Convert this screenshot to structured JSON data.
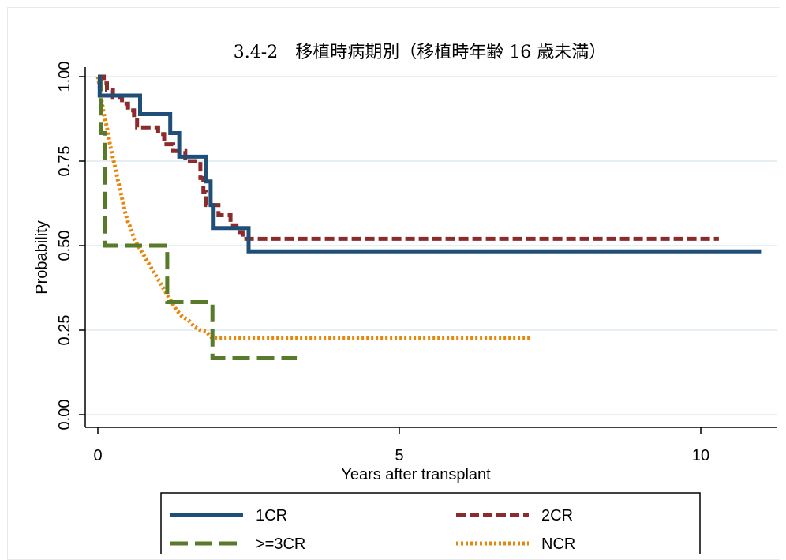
{
  "chart_data": {
    "type": "line",
    "title": "3.4-2　移植時病期別（移植時年齢 16 歳未満）",
    "xlabel": "Years after transplant",
    "ylabel": "Probability",
    "xlim": [
      0,
      11
    ],
    "ylim": [
      0,
      1
    ],
    "x_ticks": [
      "0",
      "5",
      "10"
    ],
    "y_ticks": [
      "0.00",
      "0.25",
      "0.50",
      "0.75",
      "1.00"
    ],
    "grid": "horizontal",
    "legend_position": "bottom",
    "series": [
      {
        "name": "1CR",
        "color": "#1f4e79",
        "style": "solid",
        "points": [
          [
            0,
            1.0
          ],
          [
            0.03,
            1.0
          ],
          [
            0.03,
            0.944
          ],
          [
            0.7,
            0.944
          ],
          [
            0.7,
            0.889
          ],
          [
            1.2,
            0.889
          ],
          [
            1.2,
            0.833
          ],
          [
            1.35,
            0.833
          ],
          [
            1.35,
            0.763
          ],
          [
            1.8,
            0.763
          ],
          [
            1.8,
            0.69
          ],
          [
            1.87,
            0.69
          ],
          [
            1.87,
            0.62
          ],
          [
            1.92,
            0.62
          ],
          [
            1.92,
            0.552
          ],
          [
            2.5,
            0.552
          ],
          [
            2.5,
            0.483
          ],
          [
            11.0,
            0.483
          ]
        ]
      },
      {
        "name": "2CR",
        "color": "#8b2c2c",
        "style": "dashed",
        "points": [
          [
            0,
            1.0
          ],
          [
            0.1,
            1.0
          ],
          [
            0.1,
            0.98
          ],
          [
            0.15,
            0.98
          ],
          [
            0.15,
            0.96
          ],
          [
            0.25,
            0.96
          ],
          [
            0.25,
            0.94
          ],
          [
            0.4,
            0.94
          ],
          [
            0.4,
            0.92
          ],
          [
            0.5,
            0.92
          ],
          [
            0.5,
            0.9
          ],
          [
            0.6,
            0.9
          ],
          [
            0.6,
            0.88
          ],
          [
            0.65,
            0.88
          ],
          [
            0.65,
            0.85
          ],
          [
            1.0,
            0.85
          ],
          [
            1.0,
            0.83
          ],
          [
            1.1,
            0.83
          ],
          [
            1.1,
            0.8
          ],
          [
            1.25,
            0.8
          ],
          [
            1.25,
            0.78
          ],
          [
            1.45,
            0.78
          ],
          [
            1.45,
            0.75
          ],
          [
            1.7,
            0.75
          ],
          [
            1.7,
            0.7
          ],
          [
            1.75,
            0.7
          ],
          [
            1.75,
            0.66
          ],
          [
            1.8,
            0.66
          ],
          [
            1.8,
            0.62
          ],
          [
            2.0,
            0.62
          ],
          [
            2.0,
            0.59
          ],
          [
            2.2,
            0.59
          ],
          [
            2.2,
            0.56
          ],
          [
            2.3,
            0.56
          ],
          [
            2.3,
            0.54
          ],
          [
            2.4,
            0.54
          ],
          [
            2.4,
            0.52
          ],
          [
            10.3,
            0.52
          ]
        ]
      },
      {
        "name": ">=3CR",
        "color": "#5a7a2b",
        "style": "longdash",
        "points": [
          [
            0,
            1.0
          ],
          [
            0.05,
            1.0
          ],
          [
            0.05,
            0.833
          ],
          [
            0.12,
            0.833
          ],
          [
            0.12,
            0.5
          ],
          [
            1.15,
            0.5
          ],
          [
            1.15,
            0.333
          ],
          [
            1.9,
            0.333
          ],
          [
            1.9,
            0.167
          ],
          [
            3.3,
            0.167
          ]
        ]
      },
      {
        "name": "NCR",
        "color": "#e8860c",
        "style": "dotted",
        "points": [
          [
            0,
            1.0
          ],
          [
            0.03,
            0.97
          ],
          [
            0.06,
            0.93
          ],
          [
            0.1,
            0.89
          ],
          [
            0.15,
            0.85
          ],
          [
            0.2,
            0.8
          ],
          [
            0.25,
            0.76
          ],
          [
            0.3,
            0.72
          ],
          [
            0.35,
            0.68
          ],
          [
            0.4,
            0.64
          ],
          [
            0.45,
            0.6
          ],
          [
            0.5,
            0.57
          ],
          [
            0.55,
            0.55
          ],
          [
            0.6,
            0.52
          ],
          [
            0.7,
            0.49
          ],
          [
            0.8,
            0.46
          ],
          [
            0.9,
            0.43
          ],
          [
            1.0,
            0.4
          ],
          [
            1.1,
            0.37
          ],
          [
            1.2,
            0.34
          ],
          [
            1.3,
            0.31
          ],
          [
            1.4,
            0.29
          ],
          [
            1.5,
            0.28
          ],
          [
            1.6,
            0.26
          ],
          [
            1.7,
            0.25
          ],
          [
            1.8,
            0.245
          ],
          [
            1.9,
            0.226
          ],
          [
            7.2,
            0.226
          ]
        ]
      }
    ]
  },
  "legend": {
    "items": [
      {
        "label": "1CR",
        "color": "#1f4e79",
        "style": "solid"
      },
      {
        "label": "2CR",
        "color": "#8b2c2c",
        "style": "dashed"
      },
      {
        "label": ">=3CR",
        "color": "#5a7a2b",
        "style": "longdash"
      },
      {
        "label": "NCR",
        "color": "#e8860c",
        "style": "dotted"
      }
    ]
  }
}
